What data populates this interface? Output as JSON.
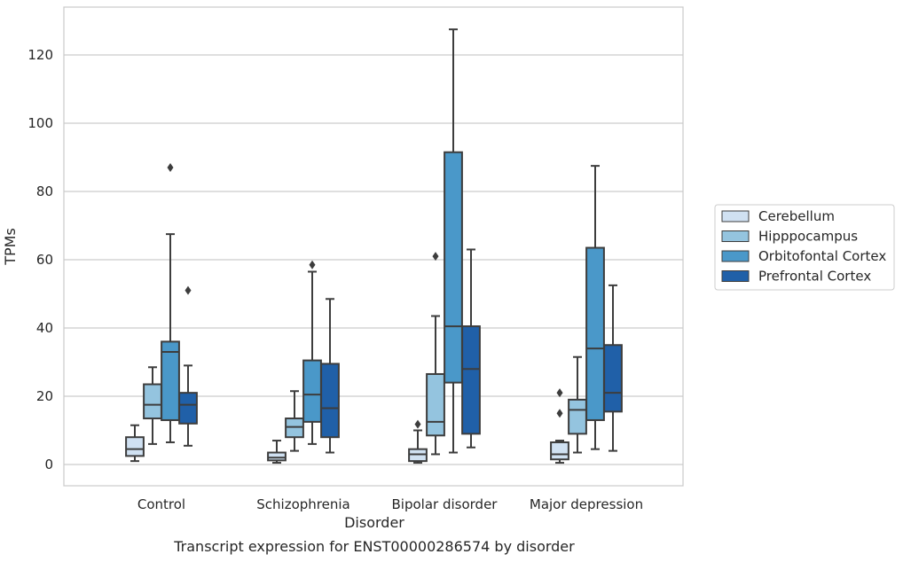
{
  "chart_data": {
    "type": "box",
    "caption": "Transcript expression for ENST00000286574 by disorder",
    "xlabel": "Disorder",
    "ylabel": "TPMs",
    "ylim": [
      -6,
      134
    ],
    "yticks": [
      0,
      20,
      40,
      60,
      80,
      100,
      120
    ],
    "grid": "horizontal",
    "legend_position": "right",
    "categories": [
      "Control",
      "Schizophrenia",
      "Bipolar disorder",
      "Major depression"
    ],
    "series": [
      {
        "name": "Cerebellum",
        "color": "#d0e1f2",
        "boxes": [
          {
            "whislo": 1,
            "q1": 2.5,
            "med": 4.5,
            "q3": 8,
            "whishi": 11.5,
            "fliers": []
          },
          {
            "whislo": 0.5,
            "q1": 1.2,
            "med": 2,
            "q3": 3.5,
            "whishi": 7,
            "fliers": []
          },
          {
            "whislo": 0.5,
            "q1": 1,
            "med": 3,
            "q3": 4.5,
            "whishi": 10,
            "fliers": [
              11.8
            ]
          },
          {
            "whislo": 0.5,
            "q1": 1.5,
            "med": 3,
            "q3": 6.5,
            "whishi": 7,
            "fliers": [
              15,
              21
            ]
          }
        ]
      },
      {
        "name": "Hipppocampus",
        "color": "#94c4df",
        "boxes": [
          {
            "whislo": 6,
            "q1": 13.5,
            "med": 17.5,
            "q3": 23.5,
            "whishi": 28.5,
            "fliers": []
          },
          {
            "whislo": 4,
            "q1": 8,
            "med": 11,
            "q3": 13.5,
            "whishi": 21.5,
            "fliers": []
          },
          {
            "whislo": 3,
            "q1": 8.5,
            "med": 12.5,
            "q3": 26.5,
            "whishi": 43.5,
            "fliers": [
              61
            ]
          },
          {
            "whislo": 3.5,
            "q1": 9,
            "med": 16,
            "q3": 19,
            "whishi": 31.5,
            "fliers": []
          }
        ]
      },
      {
        "name": "Orbitofontal Cortex",
        "color": "#4a98c9",
        "boxes": [
          {
            "whislo": 6.5,
            "q1": 13,
            "med": 33,
            "q3": 36,
            "whishi": 67.5,
            "fliers": [
              87
            ]
          },
          {
            "whislo": 6,
            "q1": 12.5,
            "med": 20.5,
            "q3": 30.5,
            "whishi": 56.5,
            "fliers": [
              58.5
            ]
          },
          {
            "whislo": 3.5,
            "q1": 24,
            "med": 40.5,
            "q3": 91.5,
            "whishi": 127.5,
            "fliers": []
          },
          {
            "whislo": 4.5,
            "q1": 13,
            "med": 34,
            "q3": 63.5,
            "whishi": 87.5,
            "fliers": []
          }
        ]
      },
      {
        "name": "Prefrontal Cortex",
        "color": "#2060a8",
        "boxes": [
          {
            "whislo": 5.5,
            "q1": 12,
            "med": 17.5,
            "q3": 21,
            "whishi": 29,
            "fliers": [
              51
            ]
          },
          {
            "whislo": 3.5,
            "q1": 8,
            "med": 16.5,
            "q3": 29.5,
            "whishi": 48.5,
            "fliers": []
          },
          {
            "whislo": 5,
            "q1": 9,
            "med": 28,
            "q3": 40.5,
            "whishi": 63,
            "fliers": []
          },
          {
            "whislo": 4,
            "q1": 15.5,
            "med": 21,
            "q3": 35,
            "whishi": 52.5,
            "fliers": []
          }
        ]
      }
    ]
  }
}
